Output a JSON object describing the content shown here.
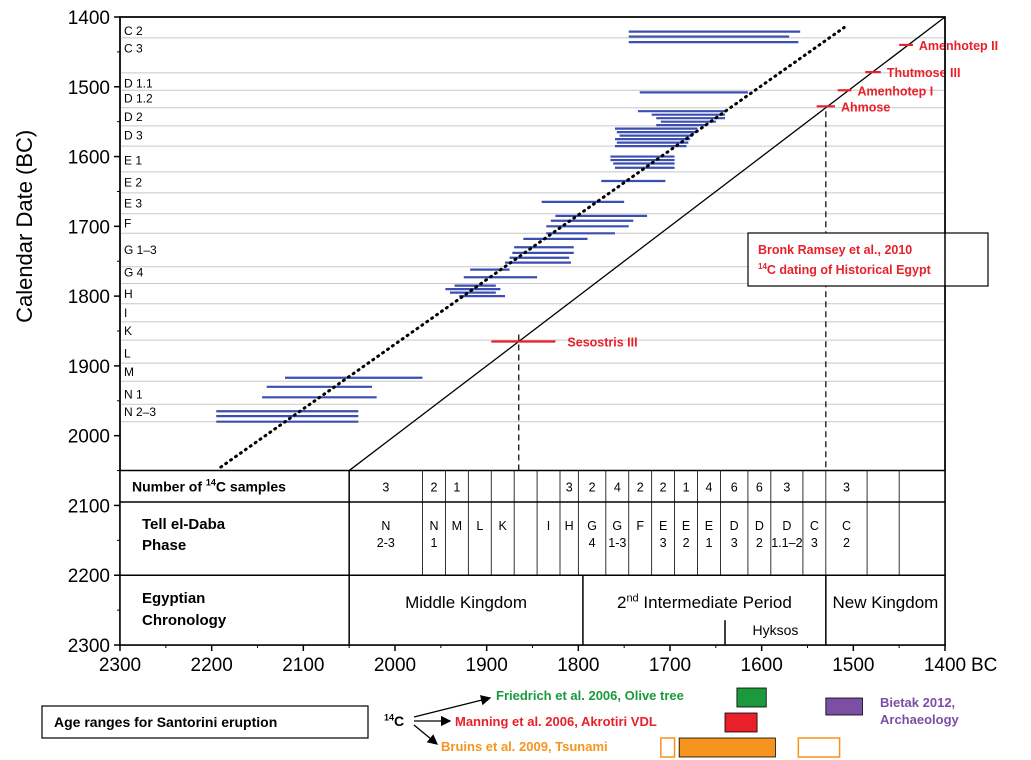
{
  "chart_data": {
    "type": "scatter",
    "title": "",
    "xlabel": "BC",
    "ylabel": "Calendar Date (BC)",
    "xlim": [
      2300,
      1400
    ],
    "ylim": [
      1400,
      2300
    ],
    "x_ticks": [
      "2300",
      "2200",
      "2100",
      "2000",
      "1900",
      "1800",
      "1700",
      "1600",
      "1500",
      "1400"
    ],
    "y_ticks": [
      "1400",
      "1500",
      "1600",
      "1700",
      "1800",
      "1900",
      "2000",
      "2100",
      "2200",
      "2300"
    ],
    "phase_labels": [
      {
        "text": "C 2",
        "y": 1420
      },
      {
        "text": "C 3",
        "y": 1445
      },
      {
        "text": "D 1.1",
        "y": 1495
      },
      {
        "text": "D 1.2",
        "y": 1517
      },
      {
        "text": "D 2",
        "y": 1543
      },
      {
        "text": "D 3",
        "y": 1570
      },
      {
        "text": "E 1",
        "y": 1606
      },
      {
        "text": "E 2",
        "y": 1637
      },
      {
        "text": "E 3",
        "y": 1667
      },
      {
        "text": "F",
        "y": 1696
      },
      {
        "text": "G 1–3",
        "y": 1734
      },
      {
        "text": "G 4",
        "y": 1766
      },
      {
        "text": "H",
        "y": 1797
      },
      {
        "text": "I",
        "y": 1824
      },
      {
        "text": "K",
        "y": 1850
      },
      {
        "text": "L",
        "y": 1882
      },
      {
        "text": "M",
        "y": 1909
      },
      {
        "text": "N 1",
        "y": 1941
      },
      {
        "text": "N 2–3",
        "y": 1966
      }
    ],
    "phase_boundaries": [
      1430,
      1480,
      1505,
      1530,
      1556,
      1585,
      1622,
      1652,
      1682,
      1710,
      1758,
      1782,
      1811,
      1837,
      1863,
      1896,
      1922,
      1955,
      1980
    ],
    "c14_ranges": [
      {
        "x0": 1745,
        "x1": 1558,
        "y": 1421
      },
      {
        "x0": 1745,
        "x1": 1570,
        "y": 1428
      },
      {
        "x0": 1745,
        "x1": 1560,
        "y": 1436
      },
      {
        "x0": 1733,
        "x1": 1615,
        "y": 1508
      },
      {
        "x0": 1735,
        "x1": 1638,
        "y": 1535
      },
      {
        "x0": 1720,
        "x1": 1640,
        "y": 1540
      },
      {
        "x0": 1715,
        "x1": 1640,
        "y": 1545
      },
      {
        "x0": 1710,
        "x1": 1650,
        "y": 1550
      },
      {
        "x0": 1715,
        "x1": 1660,
        "y": 1555
      },
      {
        "x0": 1760,
        "x1": 1670,
        "y": 1560
      },
      {
        "x0": 1758,
        "x1": 1672,
        "y": 1565
      },
      {
        "x0": 1755,
        "x1": 1675,
        "y": 1570
      },
      {
        "x0": 1760,
        "x1": 1678,
        "y": 1575
      },
      {
        "x0": 1758,
        "x1": 1680,
        "y": 1580
      },
      {
        "x0": 1760,
        "x1": 1682,
        "y": 1585
      },
      {
        "x0": 1765,
        "x1": 1695,
        "y": 1600
      },
      {
        "x0": 1765,
        "x1": 1695,
        "y": 1605
      },
      {
        "x0": 1762,
        "x1": 1695,
        "y": 1610
      },
      {
        "x0": 1760,
        "x1": 1695,
        "y": 1616
      },
      {
        "x0": 1775,
        "x1": 1705,
        "y": 1635
      },
      {
        "x0": 1840,
        "x1": 1750,
        "y": 1665
      },
      {
        "x0": 1825,
        "x1": 1725,
        "y": 1685
      },
      {
        "x0": 1830,
        "x1": 1740,
        "y": 1692
      },
      {
        "x0": 1835,
        "x1": 1745,
        "y": 1700
      },
      {
        "x0": 1835,
        "x1": 1760,
        "y": 1710
      },
      {
        "x0": 1860,
        "x1": 1790,
        "y": 1718
      },
      {
        "x0": 1870,
        "x1": 1805,
        "y": 1730
      },
      {
        "x0": 1872,
        "x1": 1805,
        "y": 1738
      },
      {
        "x0": 1875,
        "x1": 1810,
        "y": 1745
      },
      {
        "x0": 1880,
        "x1": 1808,
        "y": 1752
      },
      {
        "x0": 1918,
        "x1": 1875,
        "y": 1762
      },
      {
        "x0": 1925,
        "x1": 1845,
        "y": 1773
      },
      {
        "x0": 1935,
        "x1": 1890,
        "y": 1785
      },
      {
        "x0": 1945,
        "x1": 1885,
        "y": 1790
      },
      {
        "x0": 1940,
        "x1": 1890,
        "y": 1795
      },
      {
        "x0": 1930,
        "x1": 1880,
        "y": 1800
      },
      {
        "x0": 2120,
        "x1": 1970,
        "y": 1917
      },
      {
        "x0": 2140,
        "x1": 2025,
        "y": 1930
      },
      {
        "x0": 2145,
        "x1": 2020,
        "y": 1945
      },
      {
        "x0": 2195,
        "x1": 2040,
        "y": 1965
      },
      {
        "x0": 2195,
        "x1": 2040,
        "y": 1972
      },
      {
        "x0": 2195,
        "x1": 2040,
        "y": 1980
      }
    ],
    "dotted_line": {
      "x0": 2190,
      "y0": 2045,
      "x1": 1510,
      "y1": 1415
    },
    "solid_line": {
      "x0": 2050,
      "y0": 2050,
      "x1": 1400,
      "y1": 1400
    },
    "sesostris_dashed_x": 1865,
    "ahmose_dashed_x": 1530,
    "king_marks": [
      {
        "label": "Sesostris III",
        "x0": 1895,
        "x1": 1825,
        "y": 1865
      },
      {
        "label": "Ahmose",
        "x0": 1540,
        "x1": 1520,
        "y": 1528
      },
      {
        "label": "Amenhotep I",
        "x0": 1517,
        "x1": 1502,
        "y": 1505
      },
      {
        "label": "Thutmose III",
        "x0": 1487,
        "x1": 1470,
        "y": 1479
      },
      {
        "label": "Amenhotep II",
        "x0": 1450,
        "x1": 1435,
        "y": 1440
      }
    ],
    "ramsey_note": {
      "line1": "Bronk Ramsey et al., 2010",
      "line2_sup": "14",
      "line2": "C dating of Historical Egypt"
    },
    "table": {
      "samples_label_pre": "Number  of ",
      "samples_label_sup": "14",
      "samples_label_post": "C samples",
      "tell_label": [
        "Tell el-Daba",
        "Phase"
      ],
      "egypt_label": [
        "Egyptian",
        "Chronology"
      ],
      "phase_dividers": [
        2050,
        1970,
        1945,
        1920,
        1895,
        1870,
        1845,
        1820,
        1800,
        1770,
        1745,
        1720,
        1695,
        1670,
        1645,
        1615,
        1590,
        1555,
        1530,
        1485,
        1450,
        1400
      ],
      "phases": [
        {
          "l1": "N",
          "l2": "2-3",
          "n": "3"
        },
        {
          "l1": "N",
          "l2": "1",
          "n": "2"
        },
        {
          "l1": "M",
          "l2": "",
          "n": "1"
        },
        {
          "l1": "L",
          "l2": "",
          "n": ""
        },
        {
          "l1": "K",
          "l2": "",
          "n": ""
        },
        {
          "l1": "",
          "l2": "",
          "n": ""
        },
        {
          "l1": "I",
          "l2": "",
          "n": ""
        },
        {
          "l1": "H",
          "l2": "",
          "n": "3"
        },
        {
          "l1": "G",
          "l2": "4",
          "n": "2"
        },
        {
          "l1": "G",
          "l2": "1-3",
          "n": "4"
        },
        {
          "l1": "F",
          "l2": "",
          "n": "2"
        },
        {
          "l1": "E",
          "l2": "3",
          "n": "2"
        },
        {
          "l1": "E",
          "l2": "2",
          "n": "1"
        },
        {
          "l1": "E",
          "l2": "1",
          "n": "4"
        },
        {
          "l1": "D",
          "l2": "3",
          "n": "6"
        },
        {
          "l1": "D",
          "l2": "2",
          "n": "6"
        },
        {
          "l1": "D",
          "l2": "1.1–2",
          "n": "3"
        },
        {
          "l1": "C",
          "l2": "3",
          "n": ""
        },
        {
          "l1": "C",
          "l2": "2",
          "n": "3"
        }
      ],
      "kingdoms": [
        {
          "text": "Middle Kingdom",
          "x0": 2050,
          "x1": 1795
        },
        {
          "text": "2",
          "sup": "nd",
          "rest": " Intermediate Period",
          "x0": 1795,
          "x1": 1530
        },
        {
          "text": "New Kingdom",
          "x0": 1530,
          "x1": 1400
        }
      ],
      "hyksos": "Hyksos",
      "hyksos_x": 1640
    },
    "santorini": {
      "box_label": "Age ranges for Santorini eruption",
      "c14_label_sup": "14",
      "c14_label": "C",
      "friedrich": {
        "text": "Friedrich et al. 2006, Olive tree",
        "color": "#1a9a3c",
        "x0": 1627,
        "x1": 1595
      },
      "manning": {
        "text": "Manning et al. 2006, Akrotiri VDL",
        "color": "#e8202a",
        "x0": 1640,
        "x1": 1605
      },
      "bruins": {
        "text": "Bruins et al. 2009, Tsunami",
        "color": "#f7941d",
        "x0": 1690,
        "x1": 1585,
        "open_left": [
          1710,
          1695
        ],
        "open_right": [
          1560,
          1515
        ]
      },
      "bietak": {
        "text1": "Bietak  2012,",
        "text2": "Archaeology",
        "color": "#7b4fa3",
        "x0": 1530,
        "x1": 1490
      }
    }
  }
}
